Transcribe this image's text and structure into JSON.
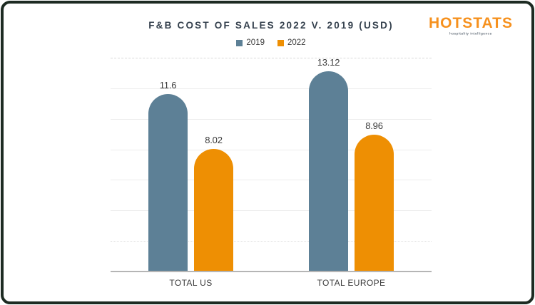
{
  "logo": {
    "text": "HOTSTATS",
    "tagline": "hospitality intelligence",
    "color": "#f6911e",
    "tagline_color": "#334150"
  },
  "legend": [
    {
      "label": "2019",
      "color": "#5d8096"
    },
    {
      "label": "2022",
      "color": "#ee8f03"
    }
  ],
  "chart_data": {
    "type": "bar",
    "title": "F&B COST OF SALES 2022 V. 2019 (USD)",
    "categories": [
      "TOTAL US",
      "TOTAL EUROPE"
    ],
    "series": [
      {
        "name": "2019",
        "color": "#5d8096",
        "values": [
          11.6,
          13.12
        ],
        "labels": [
          "11.6",
          "13.12"
        ]
      },
      {
        "name": "2022",
        "color": "#ee8f03",
        "values": [
          8.02,
          8.96
        ],
        "labels": [
          "8.02",
          "8.96"
        ]
      }
    ],
    "xlabel": "",
    "ylabel": "",
    "ylim": [
      0,
      14
    ],
    "gridline_step": 2,
    "grid": true,
    "y_tick_labels_visible": false,
    "legend_position": "top",
    "bar_cap": "rounded-top"
  },
  "colors": {
    "title": "#34404d",
    "text": "#3c3c3c",
    "gridline": "#ededed",
    "axis_line": "#b5b5b5",
    "card_border": "#1d2b22",
    "background": "#ffffff"
  }
}
